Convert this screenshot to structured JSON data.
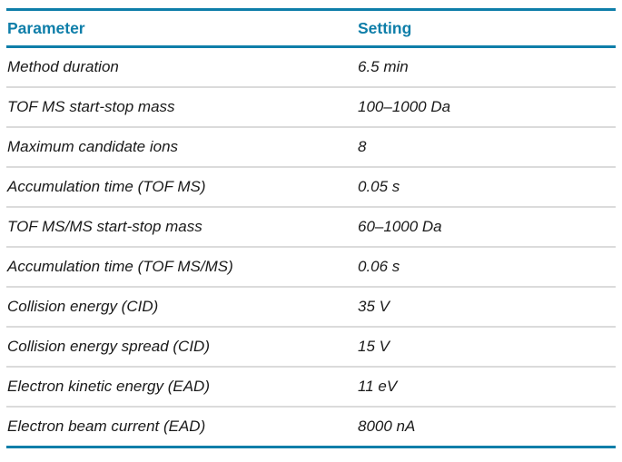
{
  "table": {
    "headers": {
      "parameter": "Parameter",
      "setting": "Setting"
    },
    "rows": [
      {
        "parameter": "Method duration",
        "setting": "6.5 min"
      },
      {
        "parameter": "TOF MS start-stop mass",
        "setting": "100–1000 Da"
      },
      {
        "parameter": "Maximum candidate ions",
        "setting": "8"
      },
      {
        "parameter": "Accumulation time (TOF MS)",
        "setting": "0.05 s"
      },
      {
        "parameter": "TOF MS/MS start-stop mass",
        "setting": "60–1000 Da"
      },
      {
        "parameter": "Accumulation time (TOF MS/MS)",
        "setting": "0.06 s"
      },
      {
        "parameter": "Collision energy (CID)",
        "setting": "35 V"
      },
      {
        "parameter": "Collision energy spread (CID)",
        "setting": "15 V"
      },
      {
        "parameter": "Electron kinetic energy (EAD)",
        "setting": "11 eV"
      },
      {
        "parameter": "Electron beam current (EAD)",
        "setting": "8000 nA"
      }
    ],
    "colors": {
      "accent": "#0E7EA9",
      "divider": "#DBDBDB",
      "body_text": "#1A1A1A"
    }
  }
}
